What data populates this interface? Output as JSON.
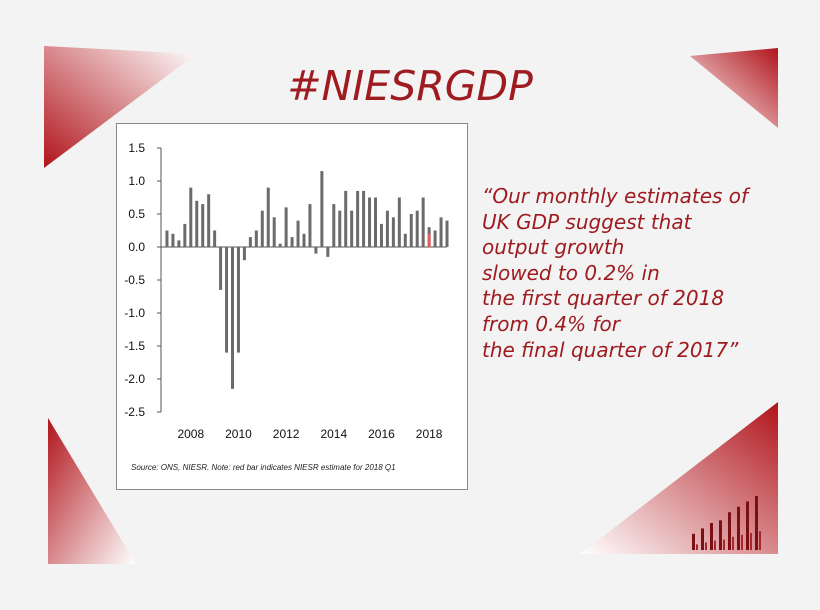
{
  "headline": "#NIESRGDP",
  "quote_lines": [
    "“Our monthly estimates of",
    "UK GDP suggest that",
    "output growth",
    "slowed to 0.2% in",
    "the first quarter of 2018",
    "from 0.4% for",
    "the final quarter of 2017”"
  ],
  "colors": {
    "brand_red": "#9e1b20",
    "bar_gray": "#6b6b6b",
    "estimate_red": "#e06060"
  },
  "chart_data": {
    "type": "bar",
    "x_tick_labels": [
      "2008",
      "2010",
      "2012",
      "2014",
      "2016",
      "2018"
    ],
    "x_tick_positions": [
      2008,
      2010,
      2012,
      2014,
      2016,
      2018
    ],
    "y_tick_labels": [
      "1.5",
      "1.0",
      "0.5",
      "0.0",
      "-0.5",
      "-1.0",
      "-1.5",
      "-2.0",
      "-2.5"
    ],
    "ylim": [
      -2.5,
      1.5
    ],
    "x_start": 2006.75,
    "x_end": 2018.75,
    "series": [
      {
        "name": "",
        "color": "#6b6b6b",
        "start": "2007 Q1",
        "values": [
          0.25,
          0.2,
          0.1,
          0.35,
          0.9,
          0.7,
          0.65,
          0.8,
          0.25,
          -0.65,
          -1.6,
          -2.15,
          -1.6,
          -0.2,
          0.15,
          0.25,
          0.55,
          0.9,
          0.45,
          0.05,
          0.6,
          0.15,
          0.4,
          0.2,
          0.65,
          -0.1,
          1.15,
          -0.15,
          0.65,
          0.55,
          0.85,
          0.55,
          0.85,
          0.85,
          0.75,
          0.75,
          0.35,
          0.55,
          0.45,
          0.75,
          0.2,
          0.5,
          0.55,
          0.75,
          0.3,
          0.25,
          0.45,
          0.4
        ]
      },
      {
        "name": "",
        "color": "#e06060",
        "start": "2018 Q1",
        "values": [
          0.2
        ]
      }
    ],
    "source_note": "Source: ONS, NIESR. Note: red bar indicates NIESR estimate for 2018 Q1"
  },
  "decor": {
    "logo_bar_values": [
      0.3,
      0.4,
      0.5,
      0.55,
      0.7,
      0.8,
      0.9,
      1.0
    ]
  }
}
